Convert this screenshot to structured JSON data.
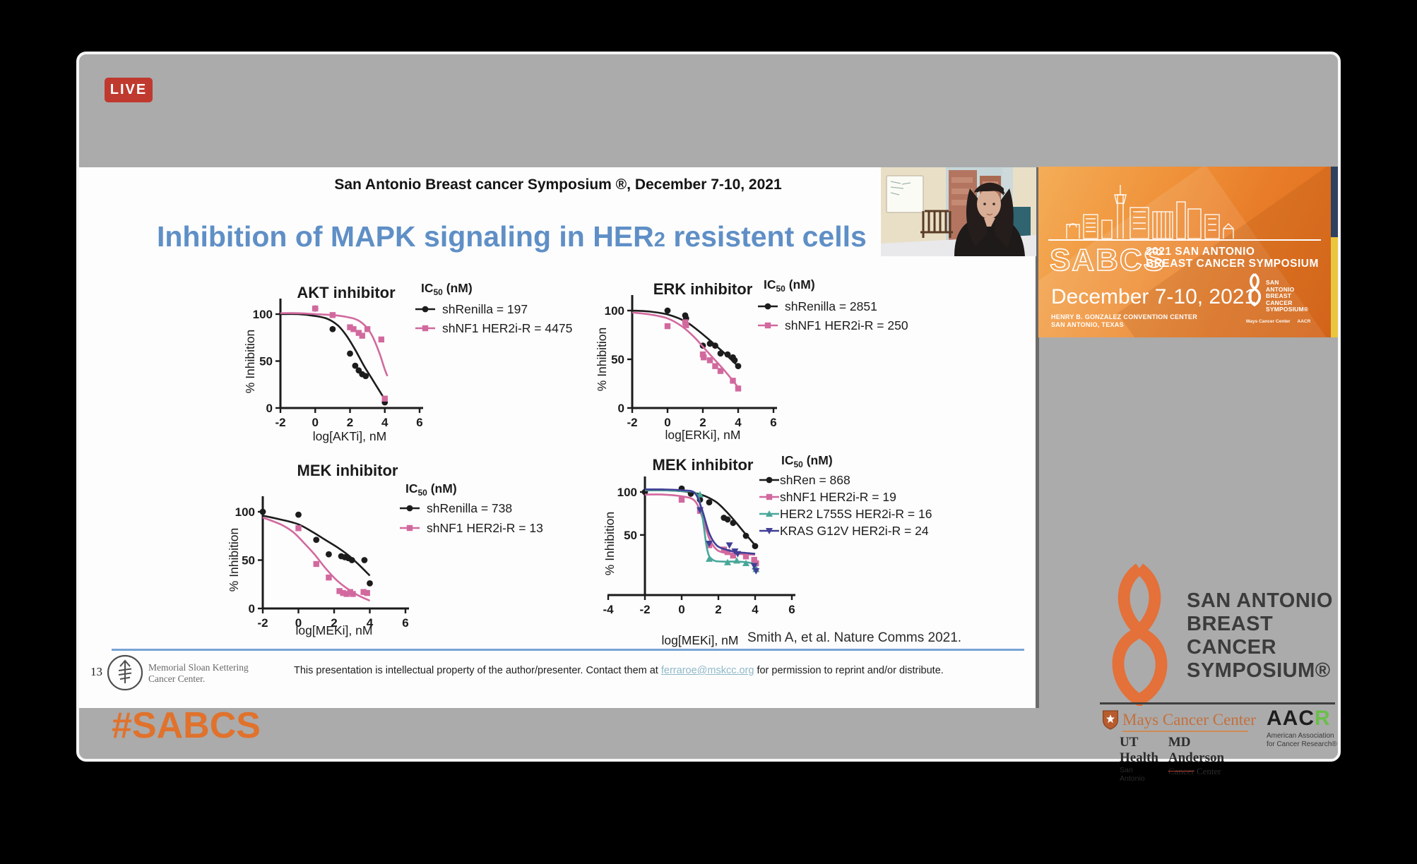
{
  "stream": {
    "live_badge": "LIVE",
    "hashtag": "#SABCS"
  },
  "slide": {
    "header": "San Antonio Breast cancer Symposium ®, December 7-10, 2021",
    "title": {
      "pre": "Inhibition of MAPK signaling in HER",
      "sub": "2",
      "post": " resistent cells"
    },
    "citation": "Smith A, et al. Nature Comms 2021.",
    "footer": {
      "page_number": "13",
      "org_line1": "Memorial Sloan Kettering",
      "org_line2": "Cancer Center.",
      "disclaimer_pre": "This presentation is intellectual property of the author/presenter. Contact them at ",
      "disclaimer_link": "ferraroe@mskcc.org",
      "disclaimer_post": " for permission to reprint and/or distribute."
    }
  },
  "banner": {
    "sabcs": "SABCS",
    "line1": "2021 SAN ANTONIO",
    "line2": "BREAST CANCER SYMPOSIUM",
    "date": "December 7-10, 2021",
    "venue1": "HENRY B. GONZALEZ CONVENTION CENTER",
    "venue2": "SAN ANTONIO, TEXAS",
    "chip_left": "Mays Cancer Center",
    "chip_right": "AACR"
  },
  "logos": {
    "title_lines": [
      "SAN ANTONIO",
      "BREAST CANCER",
      "SYMPOSIUM®"
    ],
    "mays": {
      "name": "Mays Cancer Center",
      "uth_bold": "UT Health",
      "uth_sub": "San Antonio",
      "mda_bold": "MD Anderson",
      "mda_sub_strike": "Cancer",
      "mda_sub_rest": " Center"
    },
    "aacr": {
      "black": "AAC",
      "green": "R",
      "line1": "American Association",
      "line2": "for Cancer Research®"
    }
  },
  "chart_data": [
    {
      "id": "akt",
      "type": "line",
      "title": "AKT inhibitor",
      "xlabel": "log[AKTi], nM",
      "ylabel": "% Inhibition",
      "legend_header": "IC50 (nM)",
      "legend_position": "right-top",
      "grid": false,
      "xlim": [
        -2,
        6
      ],
      "ylim": [
        0,
        100
      ],
      "x_ticks": [
        -2,
        0,
        2,
        4,
        6
      ],
      "y_ticks": [
        0,
        50,
        100
      ],
      "series": [
        {
          "name": "shRenilla =  197",
          "ic50_nM": 197,
          "color": "#1c1c1c",
          "marker": "circle",
          "curve": [
            [
              -2,
              100
            ],
            [
              -1,
              100
            ],
            [
              0,
              98
            ],
            [
              0.7,
              95
            ],
            [
              1.3,
              88
            ],
            [
              1.8,
              77
            ],
            [
              2.3,
              62
            ],
            [
              2.8,
              45
            ],
            [
              3.2,
              33
            ],
            [
              3.6,
              21
            ],
            [
              4,
              9
            ]
          ],
          "points": [
            [
              0,
              106
            ],
            [
              1,
              84
            ],
            [
              2,
              58
            ],
            [
              2.3,
              45
            ],
            [
              2.5,
              40
            ],
            [
              2.7,
              36
            ],
            [
              2.9,
              34
            ],
            [
              4,
              6
            ]
          ]
        },
        {
          "name": "shNF1 HER2i-R = 4475",
          "ic50_nM": 4475,
          "color": "#d2699e",
          "marker": "square",
          "curve": [
            [
              -2,
              101
            ],
            [
              -1,
              101
            ],
            [
              0,
              100
            ],
            [
              1,
              99
            ],
            [
              1.8,
              97
            ],
            [
              2.4,
              94
            ],
            [
              2.9,
              87
            ],
            [
              3.3,
              76
            ],
            [
              3.7,
              58
            ],
            [
              4,
              41
            ],
            [
              4.15,
              34
            ]
          ],
          "points": [
            [
              0,
              106
            ],
            [
              1,
              99
            ],
            [
              2,
              86
            ],
            [
              2.2,
              84
            ],
            [
              2.5,
              80
            ],
            [
              2.7,
              77
            ],
            [
              3,
              84
            ],
            [
              3.8,
              73
            ],
            [
              4,
              10
            ]
          ]
        }
      ]
    },
    {
      "id": "erk",
      "type": "line",
      "title": "ERK inhibitor",
      "xlabel": "log[ERKi], nM",
      "ylabel": "% Inhibition",
      "legend_header": "IC50 (nM)",
      "legend_position": "right-top",
      "grid": false,
      "xlim": [
        -2,
        6
      ],
      "ylim": [
        0,
        100
      ],
      "x_ticks": [
        -2,
        0,
        2,
        4,
        6
      ],
      "y_ticks": [
        0,
        50,
        100
      ],
      "series": [
        {
          "name": "shRenilla = 2851",
          "ic50_nM": 2851,
          "color": "#1c1c1c",
          "marker": "circle",
          "curve": [
            [
              -2,
              100
            ],
            [
              -1,
              99
            ],
            [
              0,
              96
            ],
            [
              1,
              89
            ],
            [
              1.7,
              80
            ],
            [
              2.3,
              71
            ],
            [
              2.8,
              63
            ],
            [
              3.3,
              55
            ],
            [
              3.7,
              48
            ],
            [
              4,
              43
            ]
          ],
          "points": [
            [
              0,
              100
            ],
            [
              1,
              95
            ],
            [
              1.05,
              92
            ],
            [
              2,
              64
            ],
            [
              2.4,
              66
            ],
            [
              2.7,
              64
            ],
            [
              3,
              56
            ],
            [
              3.4,
              55
            ],
            [
              3.7,
              52
            ],
            [
              3.8,
              49
            ],
            [
              4,
              43
            ]
          ]
        },
        {
          "name": "shNF1 HER2i-R = 250",
          "ic50_nM": 250,
          "color": "#d2699e",
          "marker": "square",
          "curve": [
            [
              -2,
              98
            ],
            [
              -1,
              96
            ],
            [
              0,
              92
            ],
            [
              0.8,
              84
            ],
            [
              1.5,
              73
            ],
            [
              2.1,
              61
            ],
            [
              2.7,
              49
            ],
            [
              3.2,
              39
            ],
            [
              3.7,
              28
            ],
            [
              4,
              21
            ]
          ],
          "points": [
            [
              0,
              84
            ],
            [
              1,
              88
            ],
            [
              1.05,
              85
            ],
            [
              2,
              55
            ],
            [
              2.05,
              52
            ],
            [
              2.4,
              49
            ],
            [
              2.7,
              43
            ],
            [
              3,
              38
            ],
            [
              3.7,
              28
            ],
            [
              4,
              20
            ]
          ]
        }
      ]
    },
    {
      "id": "mek1",
      "type": "line",
      "title": "MEK inhibitor",
      "xlabel": "log[MEKi], nM",
      "ylabel": "% Inhibition",
      "legend_header": "IC50 (nM)",
      "legend_position": "right-top",
      "grid": false,
      "xlim": [
        -2,
        6
      ],
      "ylim": [
        0,
        100
      ],
      "x_ticks": [
        -2,
        0,
        2,
        4,
        6
      ],
      "y_ticks": [
        0,
        50,
        100
      ],
      "series": [
        {
          "name": "shRenilla =  738",
          "ic50_nM": 738,
          "color": "#1c1c1c",
          "marker": "circle",
          "curve": [
            [
              -2,
              96
            ],
            [
              -1,
              92
            ],
            [
              0,
              87
            ],
            [
              0.8,
              79
            ],
            [
              1.5,
              71
            ],
            [
              2.2,
              63
            ],
            [
              2.8,
              55
            ],
            [
              3.4,
              45
            ],
            [
              4,
              34
            ]
          ],
          "points": [
            [
              -2,
              100
            ],
            [
              0,
              97
            ],
            [
              1,
              71
            ],
            [
              1.7,
              56
            ],
            [
              2.4,
              54
            ],
            [
              2.6,
              53
            ],
            [
              2.8,
              52
            ],
            [
              3,
              50
            ],
            [
              3.7,
              50
            ],
            [
              4,
              26
            ]
          ]
        },
        {
          "name": "shNF1 HER2i-R = 13",
          "ic50_nM": 13,
          "color": "#d2699e",
          "marker": "square",
          "curve": [
            [
              -2,
              94
            ],
            [
              -1,
              87
            ],
            [
              -0.3,
              79
            ],
            [
              0.3,
              68
            ],
            [
              0.9,
              56
            ],
            [
              1.5,
              42
            ],
            [
              2.1,
              30
            ],
            [
              2.7,
              21
            ],
            [
              3.3,
              14
            ],
            [
              4,
              8
            ]
          ],
          "points": [
            [
              0,
              83
            ],
            [
              1,
              46
            ],
            [
              1.7,
              32
            ],
            [
              2.3,
              18
            ],
            [
              2.5,
              16
            ],
            [
              2.7,
              15
            ],
            [
              2.9,
              17
            ],
            [
              3.05,
              15
            ],
            [
              3.65,
              17
            ],
            [
              3.85,
              16
            ]
          ]
        }
      ]
    },
    {
      "id": "mek2",
      "type": "line",
      "title": "MEK inhibitor",
      "xlabel": "log[MEKi], nM",
      "ylabel": "% Inhibition",
      "legend_header": "IC50 (nM)",
      "legend_position": "right-top",
      "grid": false,
      "xlim": [
        -4,
        6
      ],
      "ylim": [
        -20,
        100
      ],
      "x_ticks": [
        -4,
        -2,
        0,
        2,
        4,
        6
      ],
      "y_ticks": [
        50,
        100
      ],
      "y_axis_at_x": -2,
      "series": [
        {
          "name": "shRen = 868",
          "ic50_nM": 868,
          "color": "#1c1c1c",
          "marker": "circle",
          "curve": [
            [
              -2,
              102
            ],
            [
              -1,
              102
            ],
            [
              0,
              101
            ],
            [
              0.7,
              99
            ],
            [
              1.3,
              95
            ],
            [
              1.9,
              88
            ],
            [
              2.4,
              78
            ],
            [
              2.9,
              66
            ],
            [
              3.4,
              53
            ],
            [
              4,
              38
            ]
          ],
          "points": [
            [
              -2,
              100
            ],
            [
              0,
              104
            ],
            [
              0.5,
              98
            ],
            [
              1,
              91
            ],
            [
              1.5,
              88
            ],
            [
              2.3,
              70
            ],
            [
              2.5,
              68
            ],
            [
              2.8,
              64
            ],
            [
              3.5,
              49
            ],
            [
              4,
              37
            ]
          ]
        },
        {
          "name": "shNF1 HER2i-R = 19",
          "ic50_nM": 19,
          "color": "#d2699e",
          "marker": "square",
          "curve": [
            [
              -2,
              97
            ],
            [
              -1,
              97
            ],
            [
              0,
              95
            ],
            [
              0.7,
              90
            ],
            [
              1.1,
              72
            ],
            [
              1.5,
              46
            ],
            [
              1.9,
              33
            ],
            [
              2.4,
              29
            ],
            [
              3,
              28
            ],
            [
              4,
              27
            ]
          ],
          "points": [
            [
              0,
              91
            ],
            [
              1,
              78
            ],
            [
              1.5,
              38
            ],
            [
              2.3,
              33
            ],
            [
              2.5,
              30
            ],
            [
              2.8,
              26
            ],
            [
              3.5,
              25
            ],
            [
              3.95,
              21
            ],
            [
              4.05,
              17
            ]
          ]
        },
        {
          "name": "HER2 L755S HER2i-R = 16",
          "ic50_nM": 16,
          "color": "#49a79a",
          "marker": "triangle",
          "curve": [
            [
              -2,
              102
            ],
            [
              -1,
              102
            ],
            [
              0,
              101
            ],
            [
              0.8,
              98
            ],
            [
              1.1,
              75
            ],
            [
              1.4,
              32
            ],
            [
              1.7,
              21
            ],
            [
              2.2,
              19
            ],
            [
              3,
              19
            ],
            [
              3.6,
              18
            ],
            [
              4,
              16
            ]
          ],
          "points": [
            [
              1,
              97
            ],
            [
              1.5,
              22
            ],
            [
              2.5,
              18
            ],
            [
              3,
              20
            ],
            [
              3.5,
              17
            ],
            [
              4,
              13
            ],
            [
              4.05,
              10
            ]
          ]
        },
        {
          "name": "KRAS G12V HER2i-R = 24",
          "ic50_nM": 24,
          "color": "#413f96",
          "marker": "triangle-down",
          "curve": [
            [
              -2,
              103
            ],
            [
              -1,
              103
            ],
            [
              0,
              102
            ],
            [
              0.7,
              99
            ],
            [
              1.1,
              80
            ],
            [
              1.5,
              52
            ],
            [
              1.9,
              38
            ],
            [
              2.4,
              33
            ],
            [
              3,
              30
            ],
            [
              3.5,
              29
            ],
            [
              4,
              28
            ]
          ],
          "points": [
            [
              1,
              79
            ],
            [
              1.5,
              40
            ],
            [
              2.6,
              38
            ],
            [
              2.9,
              31
            ],
            [
              3.05,
              28
            ],
            [
              3.95,
              14
            ],
            [
              4.05,
              8
            ]
          ]
        }
      ]
    }
  ]
}
